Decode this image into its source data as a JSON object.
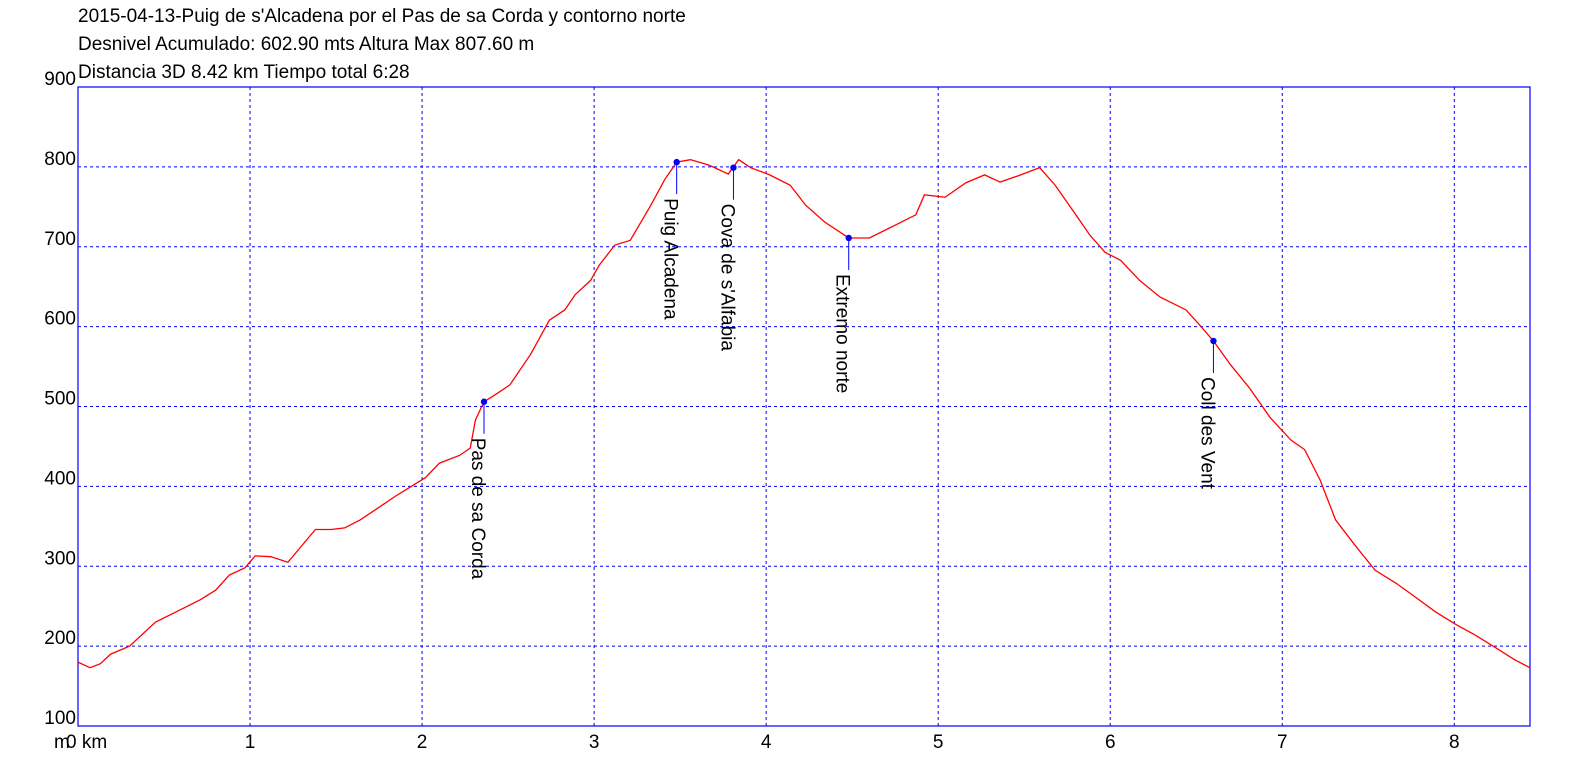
{
  "chart_data": {
    "type": "line",
    "title_lines": [
      "2015-04-13-Puig de s'Alcadena por el Pas de sa Corda y contorno norte",
      "Desnivel Acumulado: 602.90 mts  Altura Max 807.60 m",
      "Distancia 3D 8.42 km  Tiempo total 6:28"
    ],
    "y_unit": "m",
    "x": [
      0,
      0.07,
      0.13,
      0.19,
      0.3,
      0.45,
      0.59,
      0.71,
      0.8,
      0.88,
      0.97,
      1.03,
      1.12,
      1.22,
      1.29,
      1.38,
      1.47,
      1.55,
      1.64,
      1.73,
      1.84,
      1.93,
      2.02,
      2.1,
      2.22,
      2.28,
      2.31,
      2.36,
      2.42,
      2.51,
      2.63,
      2.74,
      2.83,
      2.89,
      2.98,
      3.03,
      3.12,
      3.21,
      3.33,
      3.41,
      3.48,
      3.56,
      3.67,
      3.78,
      3.84,
      3.91,
      4.02,
      4.14,
      4.23,
      4.34,
      4.48,
      4.6,
      4.75,
      4.87,
      4.92,
      5.04,
      5.16,
      5.27,
      5.36,
      5.48,
      5.59,
      5.68,
      5.8,
      5.88,
      5.97,
      6.06,
      6.17,
      6.29,
      6.44,
      6.52,
      6.6,
      6.7,
      6.81,
      6.93,
      7.05,
      7.13,
      7.22,
      7.31,
      7.42,
      7.54,
      7.66,
      7.77,
      7.89,
      8.01,
      8.12,
      8.24,
      8.35,
      8.44
    ],
    "series": [
      {
        "color": "#ff0000",
        "values": [
          180,
          173,
          178,
          190,
          200,
          230,
          245,
          258,
          270,
          289,
          298,
          313,
          312,
          305,
          323,
          346,
          346,
          348,
          358,
          371,
          387,
          399,
          411,
          429,
          439,
          448,
          483,
          506,
          514,
          527,
          565,
          608,
          621,
          640,
          658,
          677,
          702,
          708,
          752,
          784,
          806,
          809,
          802,
          791,
          809,
          799,
          790,
          777,
          752,
          731,
          711,
          711,
          727,
          740,
          765,
          762,
          780,
          790,
          781,
          790,
          799,
          777,
          740,
          715,
          693,
          683,
          658,
          637,
          621,
          602,
          582,
          552,
          523,
          486,
          458,
          446,
          408,
          358,
          327,
          295,
          279,
          262,
          243,
          227,
          214,
          198,
          183,
          173
        ]
      }
    ],
    "annotations": [
      {
        "label": "Pas de sa Corda",
        "x": 2.36,
        "y": 506
      },
      {
        "label": "Puig Alcadena",
        "x": 3.48,
        "y": 806
      },
      {
        "label": "Cova de s'Alfabia",
        "x": 3.81,
        "y": 799
      },
      {
        "label": "Extremo norte",
        "x": 4.48,
        "y": 711
      },
      {
        "label": "Coll des Vent",
        "x": 6.6,
        "y": 582
      }
    ],
    "annotation_color": "#0000ff",
    "xlim": [
      0,
      8.44
    ],
    "ylim": [
      100,
      900
    ],
    "xticks": [
      {
        "value": 0,
        "label": "0 km"
      },
      1,
      2,
      3,
      4,
      5,
      6,
      7,
      8
    ],
    "yticks": [
      100,
      200,
      300,
      400,
      500,
      600,
      700,
      800,
      900
    ],
    "grid": true,
    "grid_color": "#0000ff"
  }
}
